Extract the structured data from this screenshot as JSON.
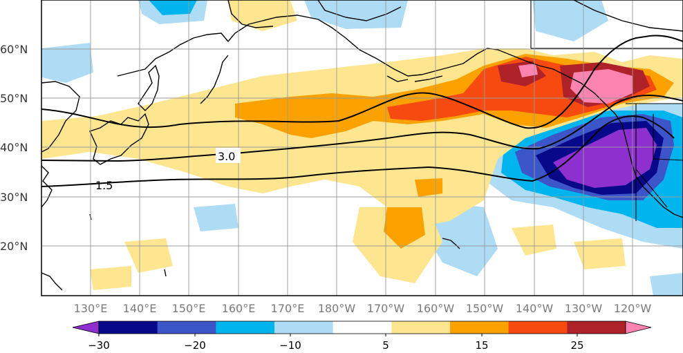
{
  "map": {
    "lat_labels": [
      "60°N",
      "50°N",
      "40°N",
      "30°N",
      "20°N"
    ],
    "lon_labels": [
      "130°E",
      "140°E",
      "150°E",
      "160°E",
      "170°E",
      "180°W",
      "170°W",
      "160°W",
      "150°W",
      "140°W",
      "130°W",
      "120°W"
    ],
    "contour_labels": [
      "3.0",
      "1.5"
    ]
  },
  "colorbar": {
    "tick_labels": [
      "−30",
      "−20",
      "−10",
      "5",
      "15",
      "25"
    ],
    "bins": [
      {
        "color": "#8e2fd0"
      },
      {
        "color": "#08088a"
      },
      {
        "color": "#3c55c9"
      },
      {
        "color": "#00b4ee"
      },
      {
        "color": "#afdcf5"
      },
      {
        "color": "#ffffff"
      },
      {
        "color": "#fde68f"
      },
      {
        "color": "#fba200"
      },
      {
        "color": "#f74a10"
      },
      {
        "color": "#b0222a"
      },
      {
        "color": "#fd83b0"
      }
    ]
  }
}
